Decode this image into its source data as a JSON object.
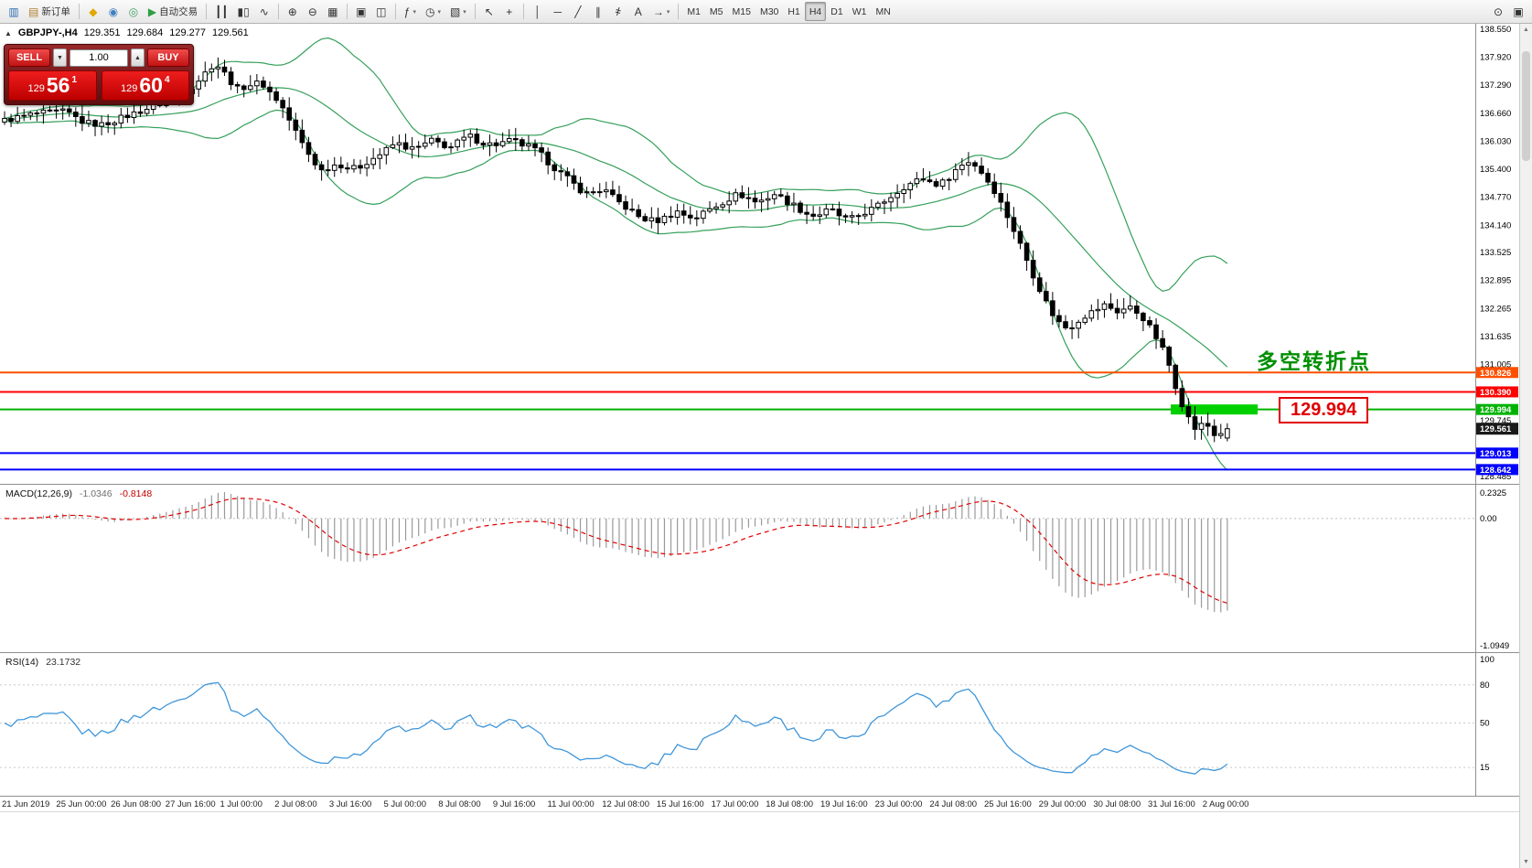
{
  "colors": {
    "accent_red": "#d40000",
    "band_green": "#35a05a",
    "line_green": "#00b300",
    "line_orange": "#ff5000",
    "line_red": "#ff0000",
    "line_blue": "#0000ff",
    "macd_hist": "#9a9a9a",
    "macd_signal": "#e00000",
    "rsi_blue": "#3f96d9",
    "current_badge": "#1a1a1a"
  },
  "toolbar": {
    "groups": [
      {
        "items": [
          {
            "name": "new-chart-button",
            "glyph": "▥",
            "glyph_color": "#2b6cb0"
          },
          {
            "name": "new-order-button",
            "glyph": "▤",
            "glyph_color": "#b08030",
            "label": "新订单"
          }
        ]
      },
      {
        "items": [
          {
            "name": "deposit-icon",
            "glyph": "◆",
            "glyph_color": "#e0a800"
          },
          {
            "name": "accounts-icon",
            "glyph": "◉",
            "glyph_color": "#3f7fbf"
          },
          {
            "name": "community-icon",
            "glyph": "◎",
            "glyph_color": "#3fa05f"
          },
          {
            "name": "autotrading-button",
            "glyph": "▶",
            "glyph_color": "#2f9e44",
            "label": "自动交易"
          }
        ]
      },
      {
        "items": [
          {
            "name": "bar-chart-button",
            "glyph": "┃┃"
          },
          {
            "name": "candle-chart-button",
            "glyph": "▮▯"
          },
          {
            "name": "line-chart-button",
            "glyph": "∿"
          }
        ]
      },
      {
        "items": [
          {
            "name": "zoom-in-button",
            "glyph": "⊕"
          },
          {
            "name": "zoom-out-button",
            "glyph": "⊖"
          },
          {
            "name": "tile-windows-button",
            "glyph": "▦"
          }
        ]
      },
      {
        "items": [
          {
            "name": "auto-scroll-button",
            "glyph": "▣"
          },
          {
            "name": "chart-shift-button",
            "glyph": "◫"
          }
        ]
      },
      {
        "items": [
          {
            "name": "indicators-button",
            "glyph": "ƒ",
            "caret": true
          },
          {
            "name": "periods-button",
            "glyph": "◷",
            "caret": true
          },
          {
            "name": "templates-button",
            "glyph": "▧",
            "caret": true
          }
        ]
      },
      {
        "items": [
          {
            "name": "cursor-button",
            "glyph": "↖"
          },
          {
            "name": "crosshair-button",
            "glyph": "+"
          }
        ]
      },
      {
        "items": [
          {
            "name": "vertical-line-button",
            "glyph": "│"
          },
          {
            "name": "horizontal-line-button",
            "glyph": "─"
          },
          {
            "name": "trendline-button",
            "glyph": "╱"
          },
          {
            "name": "channel-button",
            "glyph": "∥"
          },
          {
            "name": "fibonacci-button",
            "glyph": "҂"
          },
          {
            "name": "text-button",
            "glyph": "A"
          },
          {
            "name": "arrows-button",
            "glyph": "→",
            "caret": true
          }
        ]
      },
      {
        "items": [
          {
            "name": "tf-m1",
            "label": "M1"
          },
          {
            "name": "tf-m5",
            "label": "M5"
          },
          {
            "name": "tf-m15",
            "label": "M15"
          },
          {
            "name": "tf-m30",
            "label": "M30"
          },
          {
            "name": "tf-h1",
            "label": "H1"
          },
          {
            "name": "tf-h4",
            "label": "H4",
            "active": true
          },
          {
            "name": "tf-d1",
            "label": "D1"
          },
          {
            "name": "tf-w1",
            "label": "W1"
          },
          {
            "name": "tf-mn",
            "label": "MN"
          }
        ]
      }
    ],
    "right_items": [
      {
        "name": "search-icon",
        "glyph": "⊙"
      },
      {
        "name": "panels-icon",
        "glyph": "▣"
      }
    ]
  },
  "header": {
    "symbol": "GBPJPY-,H4",
    "open": "129.351",
    "high": "129.684",
    "low": "129.277",
    "close": "129.561"
  },
  "trade_panel": {
    "collapse_icon": "▲",
    "sell_label": "SELL",
    "buy_label": "BUY",
    "volume": "1.00",
    "spin_down": "▼",
    "spin_up": "▲",
    "sell_price": {
      "prefix": "129",
      "big": "56",
      "sup": "1"
    },
    "buy_price": {
      "prefix": "129",
      "big": "60",
      "sup": "4"
    }
  },
  "annotation": {
    "text": "多空转折点",
    "color": "#008f00"
  },
  "callout": {
    "text": "129.994"
  },
  "macd_header": {
    "name": "MACD(12,26,9)",
    "value_main": "-1.0346",
    "value_signal": "-0.8148"
  },
  "rsi_header": {
    "name": "RSI(14)",
    "value": "23.1732"
  },
  "chart_data": {
    "type": "candlestick",
    "symbol": "GBPJPY",
    "timeframe": "H4",
    "price_axis": {
      "max": 138.55,
      "min": 128.485,
      "labels": [
        "138.550",
        "137.920",
        "137.290",
        "136.660",
        "136.030",
        "135.400",
        "134.770",
        "134.140",
        "133.525",
        "132.895",
        "132.265",
        "131.635",
        "131.005"
      ],
      "plain_labels": [
        "129.745",
        "128.485"
      ]
    },
    "hlines": [
      {
        "name": "resistance-line-1",
        "price": 130.826,
        "label": "130.826",
        "color": "#ff5000",
        "width": 2
      },
      {
        "name": "resistance-line-2",
        "price": 130.39,
        "label": "130.390",
        "color": "#ff0000",
        "width": 2
      },
      {
        "name": "pivot-line",
        "price": 129.994,
        "label": "129.994",
        "color": "#00b300",
        "width": 2
      },
      {
        "name": "support-line-1",
        "price": 129.013,
        "label": "129.013",
        "color": "#0000ff",
        "width": 2
      },
      {
        "name": "support-line-2",
        "price": 128.642,
        "label": "128.642",
        "color": "#0000ff",
        "width": 2
      }
    ],
    "current_price": {
      "value": 129.561,
      "label": "129.561"
    },
    "highlight_bar": {
      "price": 129.994,
      "x_from_frac": 0.7936,
      "x_to_frac": 0.8525,
      "color": "#00d000",
      "height": 11
    },
    "candles_count": 190,
    "candles_span_frac": 0.835,
    "last_candle": {
      "open": 129.351,
      "high": 129.684,
      "low": 129.277,
      "close": 129.561
    },
    "price_path": [
      [
        0.0,
        136.5
      ],
      [
        0.025,
        136.65
      ],
      [
        0.05,
        136.7
      ],
      [
        0.065,
        136.45
      ],
      [
        0.08,
        136.4
      ],
      [
        0.1,
        136.6
      ],
      [
        0.115,
        136.75
      ],
      [
        0.13,
        136.9
      ],
      [
        0.145,
        137.1
      ],
      [
        0.155,
        137.3
      ],
      [
        0.165,
        137.6
      ],
      [
        0.172,
        137.8
      ],
      [
        0.18,
        137.55
      ],
      [
        0.19,
        137.2
      ],
      [
        0.2,
        137.3
      ],
      [
        0.21,
        137.35
      ],
      [
        0.218,
        137.1
      ],
      [
        0.225,
        136.9
      ],
      [
        0.235,
        136.4
      ],
      [
        0.245,
        135.9
      ],
      [
        0.252,
        135.6
      ],
      [
        0.26,
        135.35
      ],
      [
        0.268,
        135.5
      ],
      [
        0.275,
        135.5
      ],
      [
        0.283,
        135.4
      ],
      [
        0.29,
        135.45
      ],
      [
        0.298,
        135.6
      ],
      [
        0.305,
        135.7
      ],
      [
        0.313,
        135.85
      ],
      [
        0.32,
        136.0
      ],
      [
        0.328,
        135.9
      ],
      [
        0.335,
        135.85
      ],
      [
        0.343,
        135.95
      ],
      [
        0.35,
        136.05
      ],
      [
        0.358,
        135.95
      ],
      [
        0.365,
        135.9
      ],
      [
        0.373,
        136.05
      ],
      [
        0.38,
        136.15
      ],
      [
        0.39,
        136.0
      ],
      [
        0.4,
        135.95
      ],
      [
        0.408,
        136.0
      ],
      [
        0.415,
        136.05
      ],
      [
        0.423,
        135.95
      ],
      [
        0.43,
        135.9
      ],
      [
        0.438,
        135.75
      ],
      [
        0.445,
        135.55
      ],
      [
        0.453,
        135.35
      ],
      [
        0.46,
        135.2
      ],
      [
        0.468,
        135.0
      ],
      [
        0.475,
        134.85
      ],
      [
        0.483,
        134.9
      ],
      [
        0.49,
        134.95
      ],
      [
        0.498,
        134.75
      ],
      [
        0.505,
        134.6
      ],
      [
        0.513,
        134.45
      ],
      [
        0.52,
        134.3
      ],
      [
        0.528,
        134.25
      ],
      [
        0.535,
        134.25
      ],
      [
        0.543,
        134.35
      ],
      [
        0.55,
        134.45
      ],
      [
        0.558,
        134.35
      ],
      [
        0.565,
        134.3
      ],
      [
        0.573,
        134.45
      ],
      [
        0.58,
        134.55
      ],
      [
        0.59,
        134.7
      ],
      [
        0.6,
        134.85
      ],
      [
        0.608,
        134.75
      ],
      [
        0.615,
        134.65
      ],
      [
        0.623,
        134.75
      ],
      [
        0.63,
        134.85
      ],
      [
        0.638,
        134.7
      ],
      [
        0.645,
        134.6
      ],
      [
        0.653,
        134.45
      ],
      [
        0.66,
        134.35
      ],
      [
        0.668,
        134.4
      ],
      [
        0.675,
        134.5
      ],
      [
        0.683,
        134.35
      ],
      [
        0.69,
        134.25
      ],
      [
        0.698,
        134.35
      ],
      [
        0.705,
        134.45
      ],
      [
        0.713,
        134.55
      ],
      [
        0.72,
        134.7
      ],
      [
        0.728,
        134.85
      ],
      [
        0.735,
        135.0
      ],
      [
        0.743,
        135.1
      ],
      [
        0.75,
        135.2
      ],
      [
        0.758,
        135.1
      ],
      [
        0.765,
        135.05
      ],
      [
        0.773,
        135.25
      ],
      [
        0.78,
        135.45
      ],
      [
        0.79,
        135.6
      ],
      [
        0.8,
        135.3
      ],
      [
        0.81,
        134.9
      ],
      [
        0.82,
        134.35
      ],
      [
        0.83,
        133.75
      ],
      [
        0.84,
        133.1
      ],
      [
        0.85,
        132.5
      ],
      [
        0.86,
        132.0
      ],
      [
        0.87,
        131.8
      ],
      [
        0.88,
        132.05
      ],
      [
        0.89,
        132.2
      ],
      [
        0.9,
        132.35
      ],
      [
        0.91,
        132.2
      ],
      [
        0.92,
        132.3
      ],
      [
        0.93,
        132.1
      ],
      [
        0.94,
        131.7
      ],
      [
        0.95,
        131.2
      ],
      [
        0.958,
        130.5
      ],
      [
        0.966,
        129.9
      ],
      [
        0.974,
        129.55
      ],
      [
        0.982,
        129.7
      ],
      [
        0.99,
        129.4
      ],
      [
        1.0,
        129.561
      ]
    ],
    "bollinger": {
      "period": 20,
      "deviation": 2,
      "color": "#35a05a"
    },
    "macd": {
      "fast": 12,
      "slow": 26,
      "signal": 9,
      "axis": {
        "max": 0.2325,
        "min": -1.0949
      },
      "labels": {
        "top": "0.2325",
        "zero": "0.00",
        "bottom": "-1.0949"
      },
      "hist_color": "#9a9a9a",
      "signal_color": "#e00000"
    },
    "rsi": {
      "period": 14,
      "color": "#3f96d9",
      "levels": [
        {
          "value": 100,
          "label": "100",
          "line": false
        },
        {
          "value": 80,
          "label": "80",
          "line": true
        },
        {
          "value": 50,
          "label": "50",
          "line": true
        },
        {
          "value": 15,
          "label": "15",
          "line": true
        }
      ]
    },
    "time_axis": [
      "21 Jun 2019",
      "25 Jun 00:00",
      "26 Jun 08:00",
      "27 Jun 16:00",
      "1 Jul 00:00",
      "2 Jul 08:00",
      "3 Jul 16:00",
      "5 Jul 00:00",
      "8 Jul 08:00",
      "9 Jul 16:00",
      "11 Jul 00:00",
      "12 Jul 08:00",
      "15 Jul 16:00",
      "17 Jul 00:00",
      "18 Jul 08:00",
      "19 Jul 16:00",
      "23 Jul 00:00",
      "24 Jul 08:00",
      "25 Jul 16:00",
      "29 Jul 00:00",
      "30 Jul 08:00",
      "31 Jul 16:00",
      "2 Aug 00:00"
    ]
  }
}
